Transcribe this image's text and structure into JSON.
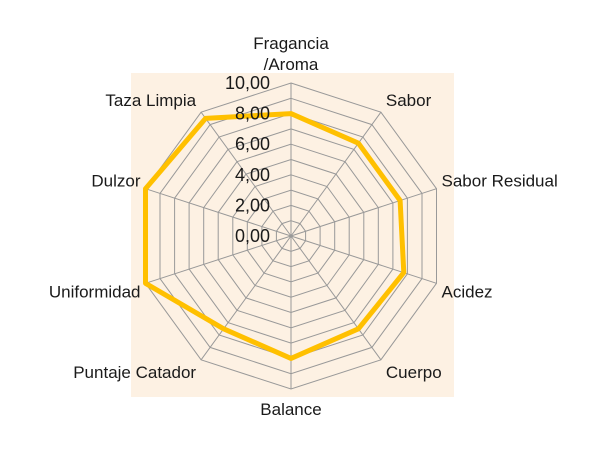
{
  "chart_data": {
    "type": "radar",
    "categories": [
      [
        "Fragancia",
        "/Aroma"
      ],
      [
        "Sabor"
      ],
      [
        "Sabor Residual"
      ],
      [
        "Acidez"
      ],
      [
        "Cuerpo"
      ],
      [
        "Balance"
      ],
      [
        "Puntaje Catador"
      ],
      [
        "Uniformidad"
      ],
      [
        "Dulzor"
      ],
      [
        "Taza Limpia"
      ]
    ],
    "series": [
      {
        "values": [
          8.0,
          7.5,
          7.5,
          7.75,
          7.5,
          8.0,
          7.5,
          10.0,
          10.0,
          9.5
        ]
      }
    ],
    "rlim": [
      0,
      10
    ],
    "ticks": [
      "0,00",
      "2,00",
      "4,00",
      "6,00",
      "8,00",
      "10,00"
    ],
    "grid": true,
    "colors": {
      "series": "#FFC000",
      "plot_background": "#FDF1E3",
      "grid": "#999999"
    }
  }
}
